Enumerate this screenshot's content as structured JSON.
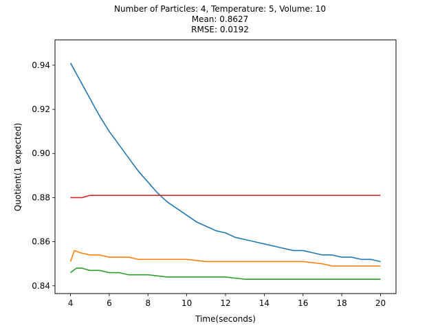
{
  "chart_data": {
    "type": "line",
    "title": [
      "Number of Particles: 4, Temperature: 5, Volume: 10",
      "Mean: 0.8627",
      "RMSE: 0.0192"
    ],
    "xlabel": "Time(seconds)",
    "ylabel": "Quotient(1 expected)",
    "xlim": [
      3.2,
      20.8
    ],
    "ylim": [
      0.8365,
      0.9515
    ],
    "xticks": [
      4,
      6,
      8,
      10,
      12,
      14,
      16,
      18,
      20
    ],
    "yticks": [
      0.84,
      0.86,
      0.88,
      0.9,
      0.92,
      0.94
    ],
    "grid": false,
    "legend": "none",
    "series": [
      {
        "color": "#1f77b4",
        "x": [
          4.0,
          4.5,
          5.0,
          5.5,
          6.0,
          6.5,
          7.0,
          7.5,
          8.0,
          8.5,
          9.0,
          9.5,
          10.0,
          10.5,
          11.0,
          11.5,
          12.0,
          12.5,
          13.0,
          13.5,
          14.0,
          14.5,
          15.0,
          15.5,
          16.0,
          16.5,
          17.0,
          17.5,
          18.0,
          18.5,
          19.0,
          19.5,
          20.0
        ],
        "y": [
          0.941,
          0.933,
          0.925,
          0.917,
          0.91,
          0.904,
          0.898,
          0.892,
          0.887,
          0.882,
          0.878,
          0.875,
          0.872,
          0.869,
          0.867,
          0.865,
          0.864,
          0.862,
          0.861,
          0.86,
          0.859,
          0.858,
          0.857,
          0.856,
          0.856,
          0.855,
          0.854,
          0.854,
          0.853,
          0.853,
          0.852,
          0.852,
          0.851
        ]
      },
      {
        "color": "#ff7f0e",
        "x": [
          4.0,
          4.2,
          4.5,
          5.0,
          5.5,
          6.0,
          6.5,
          7.0,
          7.5,
          8.0,
          8.5,
          9.0,
          10.0,
          11.0,
          12.0,
          13.0,
          14.0,
          15.0,
          16.0,
          17.0,
          17.5,
          18.0,
          18.5,
          19.0,
          19.5,
          20.0
        ],
        "y": [
          0.851,
          0.856,
          0.855,
          0.854,
          0.854,
          0.853,
          0.853,
          0.853,
          0.852,
          0.852,
          0.852,
          0.852,
          0.852,
          0.851,
          0.851,
          0.851,
          0.851,
          0.851,
          0.851,
          0.85,
          0.849,
          0.849,
          0.849,
          0.849,
          0.849,
          0.849
        ]
      },
      {
        "color": "#2ca02c",
        "x": [
          4.0,
          4.3,
          4.6,
          5.0,
          5.5,
          6.0,
          6.5,
          7.0,
          7.5,
          8.0,
          9.0,
          10.0,
          11.0,
          12.0,
          13.0,
          14.0,
          15.0,
          16.0,
          17.0,
          18.0,
          19.0,
          20.0
        ],
        "y": [
          0.846,
          0.848,
          0.848,
          0.847,
          0.847,
          0.846,
          0.846,
          0.845,
          0.845,
          0.845,
          0.844,
          0.844,
          0.844,
          0.844,
          0.843,
          0.843,
          0.843,
          0.843,
          0.843,
          0.843,
          0.843,
          0.843
        ]
      },
      {
        "color": "#d62728",
        "x": [
          4.0,
          4.3,
          4.6,
          5.0,
          5.5,
          6.0,
          7.0,
          8.0,
          9.0,
          10.0,
          11.0,
          12.0,
          13.0,
          14.0,
          15.0,
          16.0,
          17.0,
          18.0,
          19.0,
          20.0
        ],
        "y": [
          0.88,
          0.88,
          0.88,
          0.881,
          0.881,
          0.881,
          0.881,
          0.881,
          0.881,
          0.881,
          0.881,
          0.881,
          0.881,
          0.881,
          0.881,
          0.881,
          0.881,
          0.881,
          0.881,
          0.881
        ]
      }
    ]
  }
}
